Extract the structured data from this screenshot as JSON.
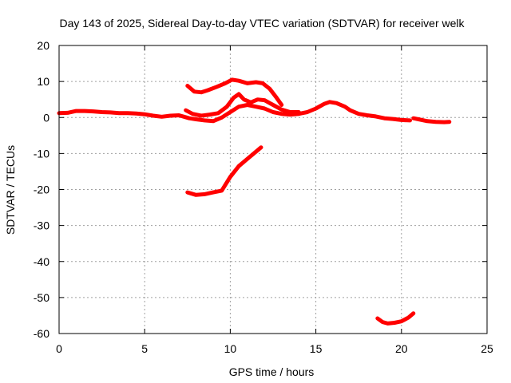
{
  "chart_data": {
    "type": "line",
    "title": "Day 143 of 2025, Sidereal Day-to-day VTEC variation (SDTVAR) for receiver welk",
    "xlabel": "GPS time / hours",
    "ylabel": "SDTVAR / TECUs",
    "xlim": [
      0,
      25
    ],
    "ylim": [
      -60,
      20
    ],
    "xticks": [
      0,
      5,
      10,
      15,
      20,
      25
    ],
    "yticks": [
      -60,
      -50,
      -40,
      -30,
      -20,
      -10,
      0,
      10,
      20
    ],
    "grid": true,
    "series_color": "#ff0000",
    "series": [
      {
        "name": "main band",
        "values": [
          [
            0,
            1.2
          ],
          [
            0.5,
            1.3
          ],
          [
            1,
            1.8
          ],
          [
            1.5,
            1.8
          ],
          [
            2,
            1.7
          ],
          [
            2.5,
            1.5
          ],
          [
            3,
            1.4
          ],
          [
            3.5,
            1.2
          ],
          [
            4,
            1.2
          ],
          [
            4.5,
            1.1
          ],
          [
            5,
            0.9
          ],
          [
            5.5,
            0.5
          ],
          [
            6,
            0.2
          ],
          [
            6.5,
            0.5
          ],
          [
            7,
            0.6
          ],
          [
            7.3,
            0.2
          ],
          [
            7.6,
            -0.2
          ],
          [
            8,
            -0.5
          ],
          [
            8.5,
            -0.8
          ],
          [
            9,
            -1.0
          ],
          [
            9.5,
            0.0
          ],
          [
            10,
            1.5
          ],
          [
            10.5,
            3.0
          ],
          [
            11,
            3.5
          ],
          [
            11.5,
            3.0
          ],
          [
            12,
            2.5
          ],
          [
            12.5,
            1.5
          ],
          [
            13,
            1.0
          ],
          [
            13.5,
            0.8
          ],
          [
            14,
            1.0
          ],
          [
            14.5,
            1.5
          ],
          [
            15,
            2.5
          ],
          [
            15.5,
            3.8
          ],
          [
            15.8,
            4.3
          ],
          [
            16.2,
            4.0
          ],
          [
            16.7,
            3.0
          ],
          [
            17,
            2.0
          ],
          [
            17.5,
            1.0
          ],
          [
            18,
            0.6
          ],
          [
            18.5,
            0.3
          ],
          [
            19,
            -0.2
          ],
          [
            19.5,
            -0.4
          ],
          [
            20,
            -0.7
          ],
          [
            20.5,
            -0.8
          ]
        ]
      },
      {
        "name": "tail segment",
        "values": [
          [
            20.7,
            -0.2
          ],
          [
            21,
            -0.5
          ],
          [
            21.5,
            -1.0
          ],
          [
            22,
            -1.2
          ],
          [
            22.5,
            -1.3
          ],
          [
            22.8,
            -1.2
          ]
        ]
      },
      {
        "name": "upper arc",
        "values": [
          [
            7.5,
            8.8
          ],
          [
            7.9,
            7.2
          ],
          [
            8.3,
            7.0
          ],
          [
            8.7,
            7.6
          ],
          [
            9.2,
            8.5
          ],
          [
            9.7,
            9.5
          ],
          [
            10.1,
            10.5
          ],
          [
            10.5,
            10.2
          ],
          [
            11,
            9.5
          ],
          [
            11.5,
            9.8
          ],
          [
            11.9,
            9.5
          ],
          [
            12.3,
            8.0
          ],
          [
            12.7,
            5.5
          ],
          [
            13.0,
            3.5
          ]
        ]
      },
      {
        "name": "secondary hump",
        "values": [
          [
            7.4,
            2.0
          ],
          [
            7.8,
            1.0
          ],
          [
            8.3,
            0.5
          ],
          [
            8.8,
            0.8
          ],
          [
            9.3,
            1.2
          ],
          [
            9.8,
            3.0
          ],
          [
            10.2,
            5.5
          ],
          [
            10.5,
            6.5
          ],
          [
            10.8,
            5.0
          ],
          [
            11.2,
            4.2
          ],
          [
            11.6,
            5.0
          ],
          [
            12,
            4.8
          ],
          [
            12.5,
            3.5
          ],
          [
            13,
            2.2
          ],
          [
            13.5,
            1.5
          ],
          [
            14,
            1.5
          ]
        ]
      },
      {
        "name": "negative ramp",
        "values": [
          [
            7.5,
            -20.8
          ],
          [
            8,
            -21.5
          ],
          [
            8.5,
            -21.3
          ],
          [
            9,
            -20.8
          ],
          [
            9.5,
            -20.3
          ],
          [
            10,
            -16.5
          ],
          [
            10.5,
            -13.5
          ],
          [
            11,
            -11.5
          ],
          [
            11.5,
            -9.5
          ],
          [
            11.8,
            -8.3
          ]
        ]
      },
      {
        "name": "bottom arc",
        "values": [
          [
            18.6,
            -55.8
          ],
          [
            18.9,
            -56.8
          ],
          [
            19.2,
            -57.2
          ],
          [
            19.6,
            -57.0
          ],
          [
            20,
            -56.6
          ],
          [
            20.4,
            -55.6
          ],
          [
            20.7,
            -54.4
          ]
        ]
      }
    ]
  }
}
